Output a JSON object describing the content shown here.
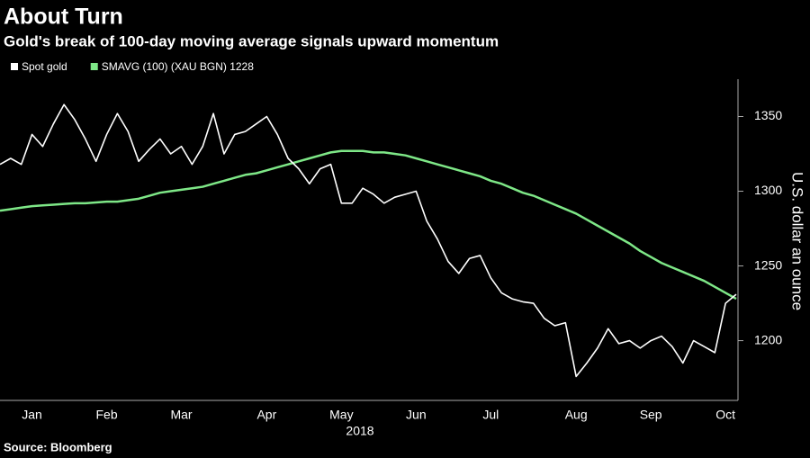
{
  "chart_data": {
    "type": "line",
    "title": "About Turn",
    "subtitle": "Gold's break of 100-day moving average signals upward momentum",
    "y_label": "U.S. dollar an ounce",
    "x_label": "2018",
    "source": "Source: Bloomberg",
    "categories": [
      null,
      null,
      null,
      "Jan",
      null,
      null,
      null,
      null,
      null,
      null,
      "Feb",
      null,
      null,
      null,
      null,
      null,
      null,
      "Mar",
      null,
      null,
      null,
      null,
      null,
      null,
      null,
      "Apr",
      null,
      null,
      null,
      null,
      null,
      null,
      "May",
      null,
      null,
      null,
      null,
      null,
      null,
      "Jun",
      null,
      null,
      null,
      null,
      null,
      null,
      "Jul",
      null,
      null,
      null,
      null,
      null,
      null,
      null,
      "Aug",
      null,
      null,
      null,
      null,
      null,
      null,
      "Sep",
      null,
      null,
      null,
      null,
      null,
      null,
      "Oct",
      null
    ],
    "series": [
      {
        "name": "Spot gold",
        "color": "#ffffff",
        "values": [
          1318,
          1322,
          1318,
          1338,
          1330,
          1345,
          1358,
          1348,
          1335,
          1320,
          1338,
          1352,
          1340,
          1320,
          1328,
          1335,
          1325,
          1330,
          1318,
          1330,
          1352,
          1325,
          1338,
          1340,
          1345,
          1350,
          1338,
          1322,
          1315,
          1305,
          1315,
          1318,
          1292,
          1292,
          1302,
          1298,
          1292,
          1296,
          1298,
          1300,
          1280,
          1268,
          1253,
          1245,
          1255,
          1257,
          1242,
          1232,
          1228,
          1226,
          1225,
          1215,
          1210,
          1212,
          1176,
          1185,
          1195,
          1208,
          1198,
          1200,
          1195,
          1200,
          1203,
          1196,
          1185,
          1200,
          1196,
          1192,
          1225,
          1231
        ]
      },
      {
        "name": "SMAVG (100) (XAU BGN) 1228",
        "color": "#7ee787",
        "values": [
          1287,
          1288,
          1289,
          1290,
          1290.5,
          1291,
          1291.5,
          1292,
          1292,
          1292.5,
          1293,
          1293,
          1294,
          1295,
          1297,
          1299,
          1300,
          1301,
          1302,
          1303,
          1305,
          1307,
          1309,
          1311,
          1312,
          1314,
          1316,
          1318,
          1320,
          1322,
          1324,
          1326,
          1327,
          1327,
          1327,
          1326,
          1326,
          1325,
          1324,
          1322,
          1320,
          1318,
          1316,
          1314,
          1312,
          1310,
          1307,
          1305,
          1302,
          1299,
          1297,
          1294,
          1291,
          1288,
          1285,
          1281,
          1277,
          1273,
          1269,
          1265,
          1260,
          1256,
          1252,
          1249,
          1246,
          1243,
          1240,
          1236,
          1232,
          1228
        ]
      }
    ],
    "ylim": [
      1160,
      1375
    ],
    "yticks": [
      1200,
      1250,
      1300,
      1350
    ],
    "grid": false
  }
}
